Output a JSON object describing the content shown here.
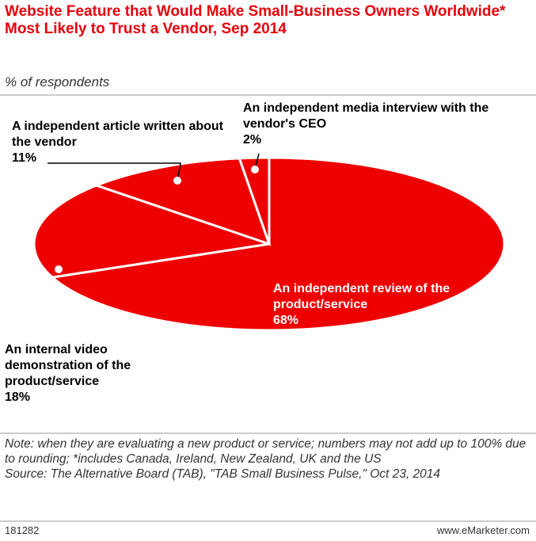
{
  "chart_data": {
    "type": "pie",
    "title": "Website Feature that Would Make Small-Business Owners Worldwide* Most Likely to Trust a Vendor, Sep 2014",
    "subtitle": "% of respondents",
    "categories": [
      "An independent review of the product/service",
      "An internal video demonstration of the product/service",
      "A independent article written about the vendor",
      "An independent media interview with the vendor's CEO"
    ],
    "values": [
      68,
      18,
      11,
      2
    ],
    "value_labels": [
      "68%",
      "18%",
      "11%",
      "2%"
    ],
    "color": "#ee0000",
    "note": "Note: when they are evaluating a new product or service; numbers may not add up to 100% due to rounding; *includes Canada, Ireland, New Zealand, UK and the US",
    "source": "Source: The Alternative Board (TAB), \"TAB Small Business Pulse,\" Oct 23, 2014",
    "chart_id": "181282",
    "credit": "www.eMarketer.com"
  }
}
